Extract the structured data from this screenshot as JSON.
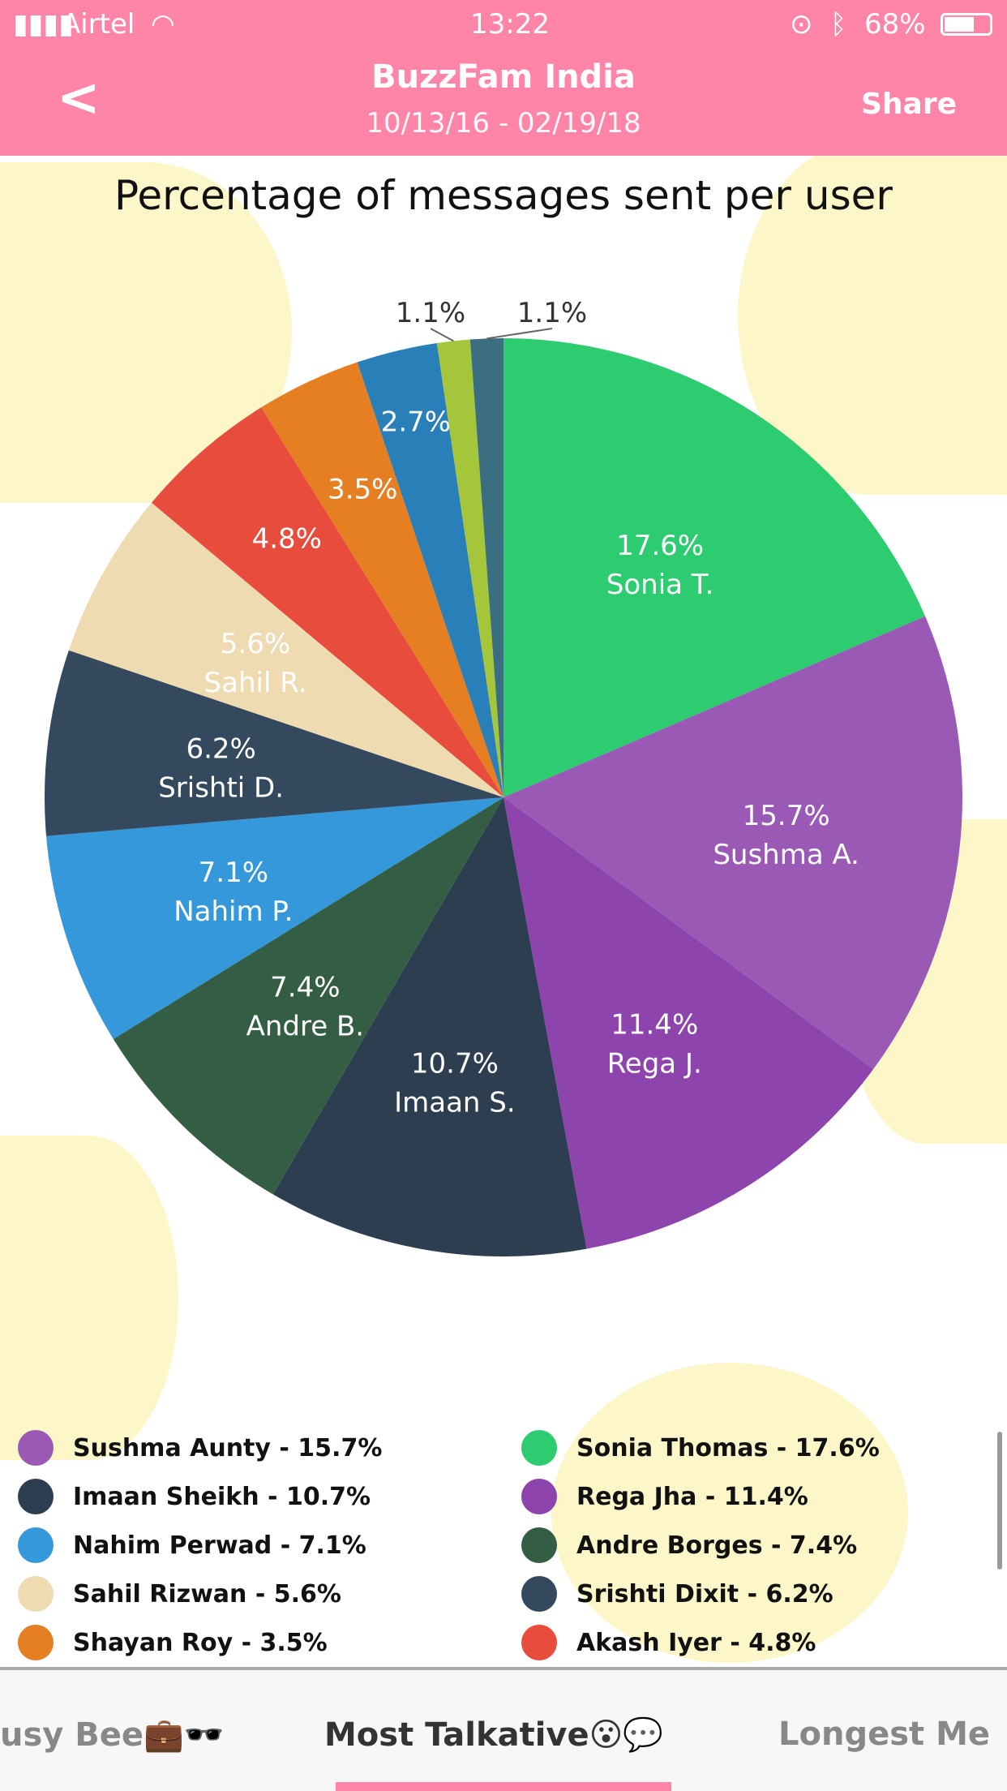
{
  "status_bar": {
    "carrier": "Airtel",
    "time": "13:22",
    "battery": "68%"
  },
  "header": {
    "back_label": "<",
    "title": "BuzzFam India",
    "date_range": "10/13/16 - 02/19/18",
    "share_label": "Share",
    "color": "#ff85a8"
  },
  "chart_data": {
    "type": "pie",
    "title": "Percentage of messages sent per user",
    "slices": [
      {
        "label": "Sonia T.",
        "value": 17.6,
        "value_label": "17.6%",
        "color": "#2ecc71"
      },
      {
        "label": "Sushma A.",
        "value": 15.7,
        "value_label": "15.7%",
        "color": "#9b59b6"
      },
      {
        "label": "Rega J.",
        "value": 11.4,
        "value_label": "11.4%",
        "color": "#8e44ad"
      },
      {
        "label": "Imaan S.",
        "value": 10.7,
        "value_label": "10.7%",
        "color": "#2c3e50"
      },
      {
        "label": "Andre B.",
        "value": 7.4,
        "value_label": "7.4%",
        "color": "#335e43"
      },
      {
        "label": "Nahim P.",
        "value": 7.1,
        "value_label": "7.1%",
        "color": "#3498db"
      },
      {
        "label": "Srishti D.",
        "value": 6.2,
        "value_label": "6.2%",
        "color": "#34495e"
      },
      {
        "label": "Sahil R.",
        "value": 5.6,
        "value_label": "5.6%",
        "color": "#efdbb2"
      },
      {
        "label": "",
        "value": 4.8,
        "value_label": "4.8%",
        "color": "#e74c3c"
      },
      {
        "label": "",
        "value": 3.5,
        "value_label": "3.5%",
        "color": "#e67e22"
      },
      {
        "label": "",
        "value": 2.7,
        "value_label": "2.7%",
        "color": "#2980b9"
      },
      {
        "label": "",
        "value": 1.1,
        "value_label": "1.1%",
        "color": "#a5c63b"
      },
      {
        "label": "",
        "value": 1.1,
        "value_label": "1.1%",
        "color": "#3b6e80"
      }
    ]
  },
  "legend": [
    {
      "text": "Sushma Aunty - 15.7%",
      "color": "#9b59b6"
    },
    {
      "text": "Sonia Thomas - 17.6%",
      "color": "#2ecc71"
    },
    {
      "text": "Imaan Sheikh - 10.7%",
      "color": "#2c3e50"
    },
    {
      "text": "Rega Jha - 11.4%",
      "color": "#8e44ad"
    },
    {
      "text": "Nahim Perwad - 7.1%",
      "color": "#3498db"
    },
    {
      "text": "Andre Borges - 7.4%",
      "color": "#335e43"
    },
    {
      "text": "Sahil Rizwan - 5.6%",
      "color": "#efdbb2"
    },
    {
      "text": "Srishti Dixit - 6.2%",
      "color": "#34495e"
    },
    {
      "text": "Shayan Roy - 3.5%",
      "color": "#e67e22"
    },
    {
      "text": "Akash Iyer - 4.8%",
      "color": "#e74c3c"
    }
  ],
  "tabs": [
    {
      "label": "usy Bee💼🕶️",
      "active": false
    },
    {
      "label": "Most Talkative😮💬",
      "active": true
    },
    {
      "label": "Longest Me",
      "active": false
    }
  ]
}
